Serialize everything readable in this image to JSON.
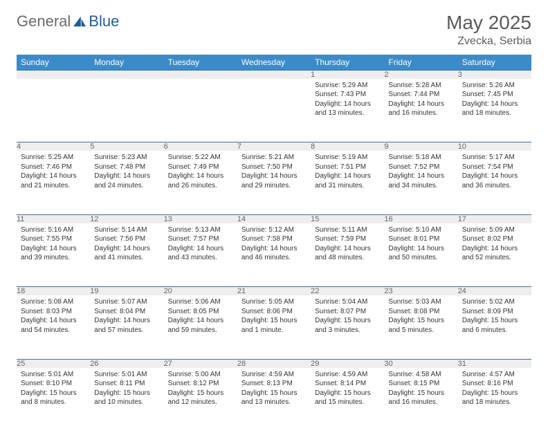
{
  "brand": {
    "part1": "General",
    "part2": "Blue"
  },
  "title": "May 2025",
  "location": "Zvecka, Serbia",
  "colors": {
    "header_bg": "#3b8bc9",
    "header_text": "#ffffff",
    "daynum_bg": "#eeeeee",
    "row_border": "#3b6fa0",
    "brand_gray": "#6b6b6b",
    "brand_blue": "#1f5d99"
  },
  "fonts": {
    "title_size": 28,
    "location_size": 16,
    "dayhead_size": 12,
    "daynum_size": 11,
    "cell_size": 10
  },
  "weekdays": [
    "Sunday",
    "Monday",
    "Tuesday",
    "Wednesday",
    "Thursday",
    "Friday",
    "Saturday"
  ],
  "weeks": [
    [
      null,
      null,
      null,
      null,
      {
        "n": "1",
        "sr": "5:29 AM",
        "ss": "7:43 PM",
        "dl": "14 hours and 13 minutes."
      },
      {
        "n": "2",
        "sr": "5:28 AM",
        "ss": "7:44 PM",
        "dl": "14 hours and 16 minutes."
      },
      {
        "n": "3",
        "sr": "5:26 AM",
        "ss": "7:45 PM",
        "dl": "14 hours and 18 minutes."
      }
    ],
    [
      {
        "n": "4",
        "sr": "5:25 AM",
        "ss": "7:46 PM",
        "dl": "14 hours and 21 minutes."
      },
      {
        "n": "5",
        "sr": "5:23 AM",
        "ss": "7:48 PM",
        "dl": "14 hours and 24 minutes."
      },
      {
        "n": "6",
        "sr": "5:22 AM",
        "ss": "7:49 PM",
        "dl": "14 hours and 26 minutes."
      },
      {
        "n": "7",
        "sr": "5:21 AM",
        "ss": "7:50 PM",
        "dl": "14 hours and 29 minutes."
      },
      {
        "n": "8",
        "sr": "5:19 AM",
        "ss": "7:51 PM",
        "dl": "14 hours and 31 minutes."
      },
      {
        "n": "9",
        "sr": "5:18 AM",
        "ss": "7:52 PM",
        "dl": "14 hours and 34 minutes."
      },
      {
        "n": "10",
        "sr": "5:17 AM",
        "ss": "7:54 PM",
        "dl": "14 hours and 36 minutes."
      }
    ],
    [
      {
        "n": "11",
        "sr": "5:16 AM",
        "ss": "7:55 PM",
        "dl": "14 hours and 39 minutes."
      },
      {
        "n": "12",
        "sr": "5:14 AM",
        "ss": "7:56 PM",
        "dl": "14 hours and 41 minutes."
      },
      {
        "n": "13",
        "sr": "5:13 AM",
        "ss": "7:57 PM",
        "dl": "14 hours and 43 minutes."
      },
      {
        "n": "14",
        "sr": "5:12 AM",
        "ss": "7:58 PM",
        "dl": "14 hours and 46 minutes."
      },
      {
        "n": "15",
        "sr": "5:11 AM",
        "ss": "7:59 PM",
        "dl": "14 hours and 48 minutes."
      },
      {
        "n": "16",
        "sr": "5:10 AM",
        "ss": "8:01 PM",
        "dl": "14 hours and 50 minutes."
      },
      {
        "n": "17",
        "sr": "5:09 AM",
        "ss": "8:02 PM",
        "dl": "14 hours and 52 minutes."
      }
    ],
    [
      {
        "n": "18",
        "sr": "5:08 AM",
        "ss": "8:03 PM",
        "dl": "14 hours and 54 minutes."
      },
      {
        "n": "19",
        "sr": "5:07 AM",
        "ss": "8:04 PM",
        "dl": "14 hours and 57 minutes."
      },
      {
        "n": "20",
        "sr": "5:06 AM",
        "ss": "8:05 PM",
        "dl": "14 hours and 59 minutes."
      },
      {
        "n": "21",
        "sr": "5:05 AM",
        "ss": "8:06 PM",
        "dl": "15 hours and 1 minute."
      },
      {
        "n": "22",
        "sr": "5:04 AM",
        "ss": "8:07 PM",
        "dl": "15 hours and 3 minutes."
      },
      {
        "n": "23",
        "sr": "5:03 AM",
        "ss": "8:08 PM",
        "dl": "15 hours and 5 minutes."
      },
      {
        "n": "24",
        "sr": "5:02 AM",
        "ss": "8:09 PM",
        "dl": "15 hours and 6 minutes."
      }
    ],
    [
      {
        "n": "25",
        "sr": "5:01 AM",
        "ss": "8:10 PM",
        "dl": "15 hours and 8 minutes."
      },
      {
        "n": "26",
        "sr": "5:01 AM",
        "ss": "8:11 PM",
        "dl": "15 hours and 10 minutes."
      },
      {
        "n": "27",
        "sr": "5:00 AM",
        "ss": "8:12 PM",
        "dl": "15 hours and 12 minutes."
      },
      {
        "n": "28",
        "sr": "4:59 AM",
        "ss": "8:13 PM",
        "dl": "15 hours and 13 minutes."
      },
      {
        "n": "29",
        "sr": "4:59 AM",
        "ss": "8:14 PM",
        "dl": "15 hours and 15 minutes."
      },
      {
        "n": "30",
        "sr": "4:58 AM",
        "ss": "8:15 PM",
        "dl": "15 hours and 16 minutes."
      },
      {
        "n": "31",
        "sr": "4:57 AM",
        "ss": "8:16 PM",
        "dl": "15 hours and 18 minutes."
      }
    ]
  ],
  "labels": {
    "sunrise": "Sunrise: ",
    "sunset": "Sunset: ",
    "daylight": "Daylight: "
  }
}
